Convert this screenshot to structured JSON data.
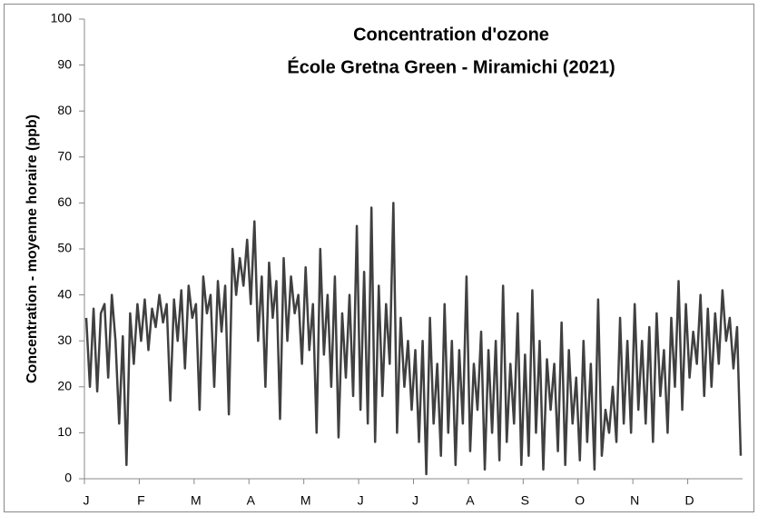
{
  "chart_data": {
    "type": "line",
    "title": "Concentration d'ozone",
    "subtitle": "École Gretna Green - Miramichi (2021)",
    "y_label": "Concentration - moyenne horaire (ppb)",
    "color": "#404040",
    "xlim": [
      0,
      360
    ],
    "xticks": [
      {
        "value": 0,
        "label": "J"
      },
      {
        "value": 30,
        "label": "F"
      },
      {
        "value": 60,
        "label": "M"
      },
      {
        "value": 90,
        "label": "A"
      },
      {
        "value": 120,
        "label": "M"
      },
      {
        "value": 150,
        "label": "J"
      },
      {
        "value": 180,
        "label": "J"
      },
      {
        "value": 210,
        "label": "A"
      },
      {
        "value": 240,
        "label": "S"
      },
      {
        "value": 270,
        "label": "O"
      },
      {
        "value": 300,
        "label": "N"
      },
      {
        "value": 330,
        "label": "D"
      }
    ],
    "ylim": [
      0,
      100
    ],
    "yticks": [
      0,
      10,
      20,
      30,
      40,
      50,
      60,
      70,
      80,
      90,
      100
    ],
    "grid": false,
    "x": [
      1,
      3,
      5,
      7,
      9,
      11,
      13,
      15,
      17,
      19,
      21,
      23,
      25,
      27,
      29,
      31,
      33,
      35,
      37,
      39,
      41,
      43,
      45,
      47,
      49,
      51,
      53,
      55,
      57,
      59,
      61,
      63,
      65,
      67,
      69,
      71,
      73,
      75,
      77,
      79,
      81,
      83,
      85,
      87,
      89,
      91,
      93,
      95,
      97,
      99,
      101,
      103,
      105,
      107,
      109,
      111,
      113,
      115,
      117,
      119,
      121,
      123,
      125,
      127,
      129,
      131,
      133,
      135,
      137,
      139,
      141,
      143,
      145,
      147,
      149,
      151,
      153,
      155,
      157,
      159,
      161,
      163,
      165,
      167,
      169,
      171,
      173,
      175,
      177,
      179,
      181,
      183,
      185,
      187,
      189,
      191,
      193,
      195,
      197,
      199,
      201,
      203,
      205,
      207,
      209,
      211,
      213,
      215,
      217,
      219,
      221,
      223,
      225,
      227,
      229,
      231,
      233,
      235,
      237,
      239,
      241,
      243,
      245,
      247,
      249,
      251,
      253,
      255,
      257,
      259,
      261,
      263,
      265,
      267,
      269,
      271,
      273,
      275,
      277,
      279,
      281,
      283,
      285,
      287,
      289,
      291,
      293,
      295,
      297,
      299,
      301,
      303,
      305,
      307,
      309,
      311,
      313,
      315,
      317,
      319,
      321,
      323,
      325,
      327,
      329,
      331,
      333,
      335,
      337,
      339,
      341,
      343,
      345,
      347,
      349,
      351,
      353,
      355,
      357,
      359
    ],
    "values": [
      35,
      20,
      37,
      19,
      36,
      38,
      22,
      40,
      30,
      12,
      31,
      3,
      36,
      25,
      38,
      30,
      39,
      28,
      37,
      33,
      40,
      34,
      38,
      17,
      39,
      30,
      41,
      24,
      42,
      35,
      38,
      15,
      44,
      36,
      40,
      20,
      43,
      32,
      42,
      14,
      50,
      40,
      48,
      42,
      52,
      38,
      56,
      30,
      44,
      20,
      47,
      35,
      43,
      13,
      48,
      30,
      44,
      36,
      40,
      25,
      46,
      28,
      38,
      10,
      50,
      27,
      40,
      20,
      44,
      9,
      36,
      22,
      40,
      18,
      55,
      15,
      45,
      12,
      59,
      8,
      42,
      18,
      38,
      25,
      60,
      10,
      35,
      20,
      30,
      15,
      28,
      8,
      30,
      1,
      35,
      12,
      25,
      5,
      38,
      10,
      30,
      3,
      28,
      12,
      44,
      6,
      25,
      15,
      32,
      2,
      28,
      10,
      30,
      4,
      42,
      8,
      25,
      12,
      36,
      3,
      27,
      5,
      41,
      10,
      30,
      2,
      26,
      15,
      25,
      6,
      34,
      3,
      28,
      12,
      22,
      4,
      30,
      8,
      25,
      2,
      39,
      5,
      15,
      10,
      20,
      8,
      35,
      12,
      30,
      10,
      38,
      15,
      30,
      12,
      33,
      8,
      36,
      18,
      28,
      10,
      35,
      20,
      43,
      15,
      38,
      22,
      32,
      25,
      40,
      18,
      37,
      20,
      36,
      25,
      41,
      30,
      35,
      24,
      33,
      5
    ]
  }
}
